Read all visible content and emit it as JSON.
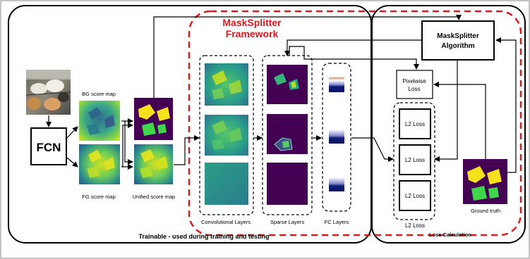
{
  "framework": {
    "title_line1": "MaskSplitter",
    "title_line2": "Framework",
    "accent": "#e0191f"
  },
  "fcn": {
    "label": "FCN"
  },
  "maps": {
    "bg": "BG score map",
    "fg": "FG score map",
    "unified": "Unified score map"
  },
  "layers": {
    "conv": "Convolutional Layers",
    "sparse": "Sparse Layers",
    "fc": "FC Layers"
  },
  "algorithm": {
    "line1": "MaskSplitter",
    "line2": "Algorithm"
  },
  "loss": {
    "pixelwise_line1": "Pixelwise",
    "pixelwise_line2": "Loss",
    "l2_items": [
      "L2 Loss",
      "L2 Loss",
      "L2 Loss"
    ],
    "l2_group": "L2 Loss"
  },
  "ground_truth": "Ground truth",
  "footer": {
    "trainable": "Trainable - used during training and testing",
    "loss_calc": "Loss Calculation"
  },
  "colors": {
    "viridis_dark": "#3b0f6f",
    "viridis_teal": "#2a8a8a",
    "viridis_green": "#55c667",
    "viridis_yellow": "#f2e01a",
    "mask_yellow": "#f5e11c",
    "mask_green": "#3ed64b",
    "purple_bg": "#440154"
  }
}
